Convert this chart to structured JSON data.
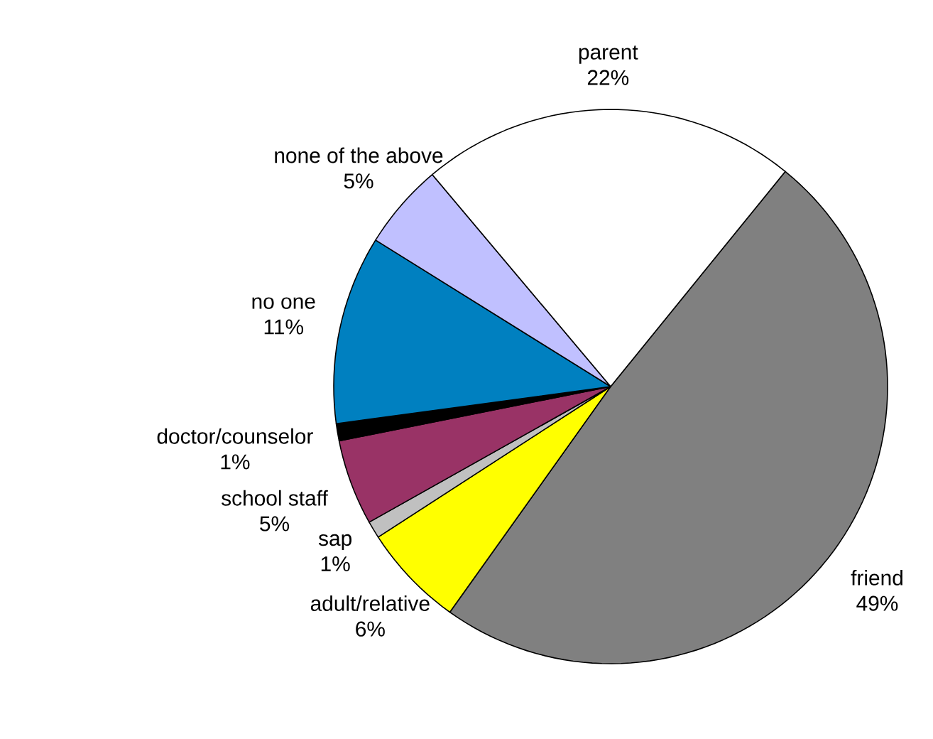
{
  "chart_data": {
    "type": "pie",
    "categories": [
      "friend",
      "adult/relative",
      "sap",
      "school staff",
      "doctor/counselor",
      "no one",
      "none of the above",
      "parent"
    ],
    "values": [
      49,
      6,
      1,
      5,
      1,
      11,
      5,
      22
    ],
    "value_labels": [
      "49%",
      "6%",
      "1%",
      "5%",
      "1%",
      "11%",
      "5%",
      "22%"
    ],
    "colors": [
      "#808080",
      "#ffff00",
      "#c0c0c0",
      "#993366",
      "#000000",
      "#0080c0",
      "#c0c0ff",
      "#ffffff"
    ]
  }
}
